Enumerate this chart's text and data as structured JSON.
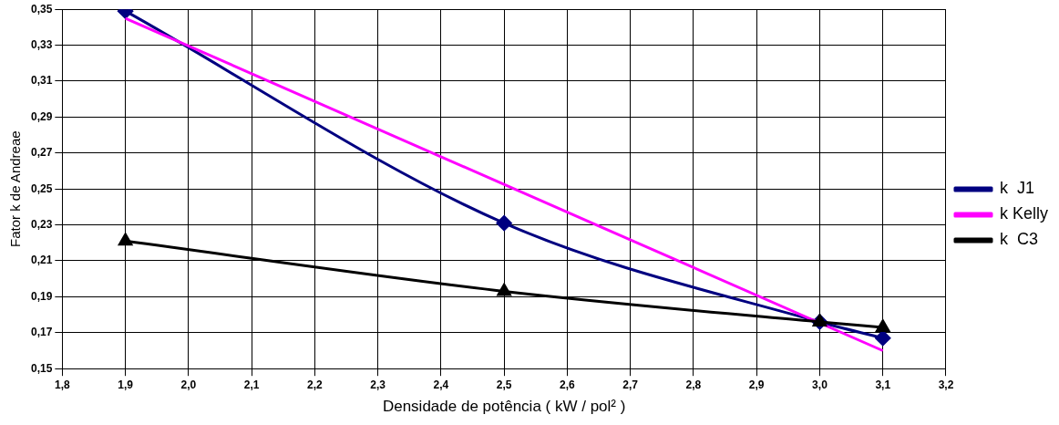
{
  "chart_data": {
    "type": "line",
    "xlabel": "Densidade de potência ( kW / pol² )",
    "ylabel": "Fator k de Andreae",
    "xlim": [
      1.8,
      3.2
    ],
    "xticks": [
      {
        "value": 1.8,
        "label": "1,8"
      },
      {
        "value": 1.9,
        "label": "1,9"
      },
      {
        "value": 2.0,
        "label": "2,0"
      },
      {
        "value": 2.1,
        "label": "2,1"
      },
      {
        "value": 2.2,
        "label": "2,2"
      },
      {
        "value": 2.3,
        "label": "2,3"
      },
      {
        "value": 2.4,
        "label": "2,4"
      },
      {
        "value": 2.5,
        "label": "2,5"
      },
      {
        "value": 2.6,
        "label": "2,6"
      },
      {
        "value": 2.7,
        "label": "2,7"
      },
      {
        "value": 2.8,
        "label": "2,8"
      },
      {
        "value": 2.9,
        "label": "2,9"
      },
      {
        "value": 3.0,
        "label": "3,0"
      },
      {
        "value": 3.1,
        "label": "3,1"
      },
      {
        "value": 3.2,
        "label": "3,2"
      }
    ],
    "ylim": [
      0.15,
      0.35
    ],
    "yticks": [
      {
        "value": 0.15,
        "label": "0,15"
      },
      {
        "value": 0.17,
        "label": "0,17"
      },
      {
        "value": 0.19,
        "label": "0,19"
      },
      {
        "value": 0.21,
        "label": "0,21"
      },
      {
        "value": 0.23,
        "label": "0,23"
      },
      {
        "value": 0.25,
        "label": "0,25"
      },
      {
        "value": 0.27,
        "label": "0,27"
      },
      {
        "value": 0.29,
        "label": "0,29"
      },
      {
        "value": 0.31,
        "label": "0,31"
      },
      {
        "value": 0.33,
        "label": "0,33"
      },
      {
        "value": 0.35,
        "label": "0,35"
      }
    ],
    "grid": true,
    "legend": "right",
    "series": [
      {
        "name": "k  J1",
        "color": "#000080",
        "marker": "diamond",
        "x": [
          1.9,
          2.5,
          3.0,
          3.1
        ],
        "values": [
          0.349,
          0.231,
          0.176,
          0.167
        ]
      },
      {
        "name": "k Kelly",
        "color": "#ff00ff",
        "marker": "none",
        "x": [
          1.9,
          3.1
        ],
        "values": [
          0.345,
          0.16
        ]
      },
      {
        "name": "k  C3",
        "color": "#000000",
        "marker": "triangle",
        "x": [
          1.9,
          2.5,
          3.0,
          3.1
        ],
        "values": [
          0.221,
          0.193,
          0.176,
          0.173
        ]
      }
    ]
  }
}
